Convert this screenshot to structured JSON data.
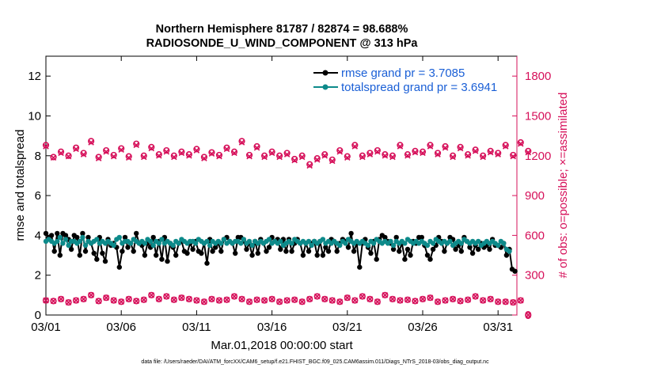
{
  "chart_data": {
    "type": "line",
    "title": "Northern Hemisphere 81787 / 82874 = 98.688%",
    "subtitle": "RADIOSONDE_U_WIND_COMPONENT @ 313 hPa",
    "xlabel": "Mar.01,2018 00:00:00 start",
    "ylabel": "rmse and totalspread",
    "ylabel_right": "# of obs: o=possible; ×=assimilated",
    "x_range": [
      0,
      31.25
    ],
    "ylim": [
      0,
      13
    ],
    "ylim_right": [
      0,
      1950
    ],
    "x_ticks": [
      {
        "x": 0,
        "label": "03/01"
      },
      {
        "x": 5,
        "label": "03/06"
      },
      {
        "x": 10,
        "label": "03/11"
      },
      {
        "x": 15,
        "label": "03/16"
      },
      {
        "x": 20,
        "label": "03/21"
      },
      {
        "x": 25,
        "label": "03/26"
      },
      {
        "x": 30,
        "label": "03/31"
      }
    ],
    "y_ticks": [
      0,
      2,
      4,
      6,
      8,
      10,
      12
    ],
    "y_ticks_right": [
      0,
      300,
      600,
      900,
      1200,
      1500,
      1800
    ],
    "footnote": "data file: /Users/raeder/DAI/ATM_forcXX/CAM6_setup/f.e21.FHIST_BGC.f09_025.CAM6assim.011/Diags_NTrS_2018-03/obs_diag_output.nc",
    "colors": {
      "rmse": "#000000",
      "totalspread": "#0d8a8a",
      "obs": "#d6105a",
      "legend_text": "#1a5fd6"
    },
    "series": [
      {
        "name": "rmse grand pr = 3.7085",
        "key": "rmse",
        "values": [
          4.1,
          3.9,
          4.0,
          3.2,
          4.1,
          3.0,
          4.1,
          4.0,
          3.8,
          3.3,
          4.0,
          3.9,
          3.0,
          4.1,
          3.2,
          3.9,
          3.6,
          3.1,
          2.8,
          3.9,
          3.1,
          2.7,
          3.8,
          3.5,
          3.6,
          3.4,
          2.4,
          3.2,
          3.9,
          3.4,
          3.6,
          3.2,
          4.1,
          3.6,
          3.5,
          3.0,
          3.6,
          3.4,
          3.9,
          3.0,
          3.7,
          2.8,
          3.9,
          2.7,
          3.6,
          3.4,
          3.0,
          3.6,
          3.7,
          3.2,
          3.1,
          3.6,
          3.3,
          3.7,
          3.2,
          3.1,
          3.6,
          2.6,
          3.8,
          3.2,
          3.4,
          3.6,
          3.2,
          3.8,
          3.9,
          3.7,
          3.6,
          3.1,
          3.9,
          3.9,
          3.7,
          3.3,
          3.6,
          3.0,
          3.7,
          3.1,
          3.8,
          3.6,
          3.2,
          3.4,
          3.9,
          3.7,
          3.8,
          3.3,
          3.8,
          3.2,
          3.8,
          3.2,
          3.6,
          3.8,
          3.6,
          3.0,
          3.6,
          3.2,
          3.6,
          3.7,
          3.0,
          3.7,
          3.0,
          3.4,
          3.2,
          3.8,
          3.7,
          3.2,
          3.6,
          3.8,
          3.7,
          3.4,
          4.1,
          3.2,
          3.6,
          2.4,
          3.6,
          3.8,
          3.4,
          3.1,
          3.7,
          2.8,
          3.8,
          4.0,
          3.9,
          3.7,
          3.6,
          3.3,
          3.9,
          3.2,
          3.6,
          2.8,
          3.3,
          3.0,
          3.7,
          3.6,
          3.9,
          3.9,
          3.5,
          3.0,
          2.8,
          3.3,
          3.5,
          3.9,
          3.7,
          3.2,
          3.6,
          3.9,
          3.8,
          3.3,
          3.5,
          3.2,
          3.9,
          3.7,
          3.4,
          3.1,
          3.5,
          3.3,
          3.6,
          3.4,
          3.5,
          3.3,
          3.8,
          3.5,
          3.5,
          3.4,
          3.6,
          3.0,
          3.3,
          2.3,
          2.2
        ],
        "x_step": 0.1875
      },
      {
        "name": "totalspread grand pr = 3.6941",
        "key": "totalspread",
        "values": [
          3.7,
          3.8,
          3.7,
          3.6,
          3.7,
          3.9,
          3.6,
          3.8,
          3.5,
          3.7,
          3.7,
          3.6,
          3.7,
          3.9,
          3.5,
          3.7,
          3.6,
          3.7,
          3.8,
          3.6,
          3.7,
          3.6,
          3.7,
          3.6,
          3.5,
          3.8,
          3.9,
          3.6,
          3.7,
          3.7,
          3.6,
          3.8,
          3.7,
          3.6,
          3.7,
          3.6,
          3.8,
          3.7,
          3.5,
          3.7,
          3.6,
          3.8,
          3.6,
          3.7,
          3.6,
          3.5,
          3.7,
          3.6,
          3.8,
          3.7,
          3.6,
          3.7,
          3.7,
          3.6,
          3.8,
          3.7,
          3.6,
          3.7,
          3.5,
          3.7,
          3.6,
          3.7,
          3.6,
          3.8,
          3.6,
          3.7,
          3.6,
          3.7,
          3.7,
          3.6,
          3.8,
          3.6,
          3.7,
          3.5,
          3.7,
          3.6,
          3.7,
          3.6,
          3.7,
          3.8,
          3.6,
          3.7,
          3.6,
          3.7,
          3.5,
          3.6,
          3.7,
          3.6,
          3.8,
          3.7,
          3.6,
          3.7,
          3.6,
          3.7,
          3.5,
          3.7,
          3.6,
          3.7,
          3.8,
          3.6,
          3.7,
          3.6,
          3.7,
          3.6,
          3.5,
          3.7,
          3.6,
          3.8,
          3.7,
          3.6,
          3.7,
          3.6,
          3.7,
          3.6,
          3.5,
          3.7,
          3.6,
          3.8,
          3.7,
          3.6,
          3.7,
          3.6,
          3.7,
          3.5,
          3.7,
          3.6,
          3.7,
          3.6,
          3.8,
          3.7,
          3.6,
          3.7,
          3.6,
          3.7,
          3.6,
          3.5,
          3.7,
          3.6,
          3.8,
          3.7,
          3.6,
          3.7,
          3.6,
          3.7,
          3.5,
          3.6,
          3.7,
          3.6,
          3.8,
          3.7,
          3.6,
          3.7,
          3.6,
          3.7,
          3.5,
          3.6,
          3.7,
          3.6,
          3.7,
          3.6,
          3.5,
          3.7,
          3.6,
          3.3,
          3.2
        ],
        "x_step": 0.1875
      },
      {
        "name": "obs possible/assimilated (upper band)",
        "key": "obs_high",
        "axis": "right",
        "x_step": 0.5,
        "values": [
          1280,
          1190,
          1230,
          1200,
          1260,
          1220,
          1310,
          1190,
          1240,
          1205,
          1255,
          1195,
          1290,
          1200,
          1265,
          1210,
          1240,
          1200,
          1230,
          1210,
          1250,
          1190,
          1225,
          1205,
          1260,
          1230,
          1310,
          1205,
          1270,
          1200,
          1230,
          1200,
          1220,
          1175,
          1200,
          1135,
          1180,
          1210,
          1170,
          1240,
          1195,
          1280,
          1200,
          1220,
          1240,
          1210,
          1200,
          1280,
          1210,
          1235,
          1230,
          1280,
          1220,
          1270,
          1200,
          1265,
          1210,
          1245,
          1200,
          1235,
          1220,
          1280,
          1205,
          1300,
          1235
        ],
        "crosses": [
          1270,
          1185,
          1220,
          1195,
          1250,
          1210,
          1300,
          1180,
          1230,
          1195,
          1245,
          1185,
          1280,
          1190,
          1255,
          1200,
          1230,
          1190,
          1220,
          1200,
          1240,
          1180,
          1215,
          1195,
          1250,
          1220,
          1300,
          1195,
          1260,
          1190,
          1220,
          1190,
          1210,
          1165,
          1190,
          1125,
          1170,
          1200,
          1160,
          1230,
          1185,
          1270,
          1190,
          1210,
          1230,
          1200,
          1190,
          1270,
          1200,
          1225,
          1220,
          1270,
          1210,
          1260,
          1190,
          1255,
          1200,
          1235,
          1190,
          1225,
          1210,
          1270,
          1195,
          1290,
          1225
        ]
      },
      {
        "name": "obs possible/assimilated (lower band)",
        "key": "obs_low",
        "axis": "right",
        "x_step": 0.5,
        "values": [
          110,
          105,
          120,
          95,
          110,
          120,
          150,
          105,
          130,
          110,
          100,
          120,
          105,
          115,
          150,
          120,
          140,
          115,
          130,
          120,
          110,
          100,
          120,
          110,
          115,
          140,
          120,
          100,
          115,
          110,
          120,
          100,
          110,
          115,
          100,
          120,
          140,
          120,
          110,
          100,
          130,
          110,
          140,
          120,
          100,
          150,
          120,
          110,
          115,
          105,
          120,
          130,
          100,
          110,
          120,
          105,
          115,
          140,
          110,
          120,
          100,
          100,
          95,
          110,
          0
        ]
      }
    ],
    "legend": [
      {
        "label": "rmse grand pr = 3.7085",
        "key": "rmse"
      },
      {
        "label": "totalspread grand pr = 3.6941",
        "key": "totalspread"
      }
    ]
  }
}
